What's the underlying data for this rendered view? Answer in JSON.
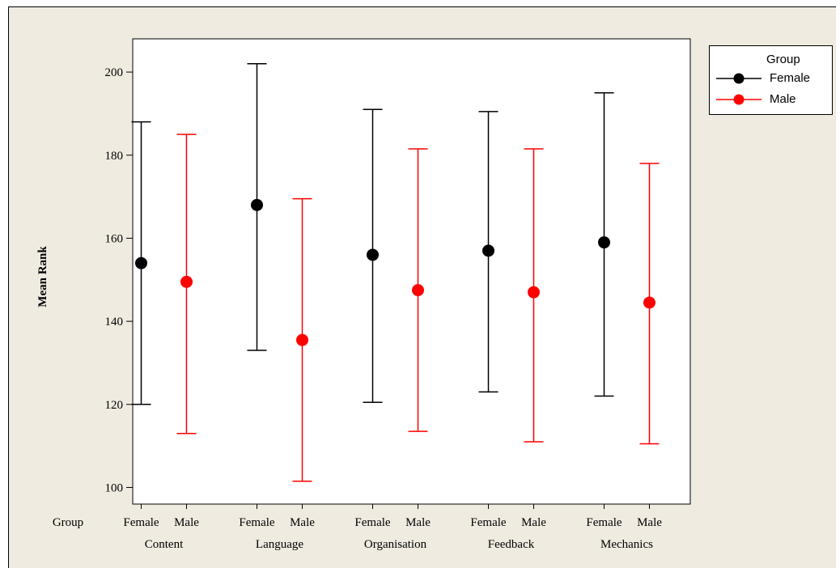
{
  "chart_data": {
    "type": "errorbar",
    "ylabel": "Mean Rank",
    "xlabel_prefix": "Group",
    "ylim": [
      96,
      208
    ],
    "yticks": [
      100,
      120,
      140,
      160,
      180,
      200
    ],
    "grid": false,
    "legend_placement": "top-right outside plot",
    "legend": {
      "title": "Group",
      "items": [
        {
          "name": "Female",
          "color": "#000000"
        },
        {
          "name": "Male",
          "color": "#ff0000"
        }
      ]
    },
    "categories": [
      "Content",
      "Language",
      "Organisation",
      "Feedback",
      "Mechanics"
    ],
    "series": [
      {
        "name": "Female",
        "color": "#000000",
        "mean": [
          154,
          168,
          156,
          157,
          159
        ],
        "lower": [
          120,
          133,
          120.5,
          123,
          122
        ],
        "upper": [
          188,
          202,
          191,
          190.5,
          195
        ]
      },
      {
        "name": "Male",
        "color": "#ff0000",
        "mean": [
          149.5,
          135.5,
          147.5,
          147,
          144.5
        ],
        "lower": [
          113,
          101.5,
          113.5,
          111,
          110.5
        ],
        "upper": [
          185,
          169.5,
          181.5,
          181.5,
          178
        ]
      }
    ]
  }
}
